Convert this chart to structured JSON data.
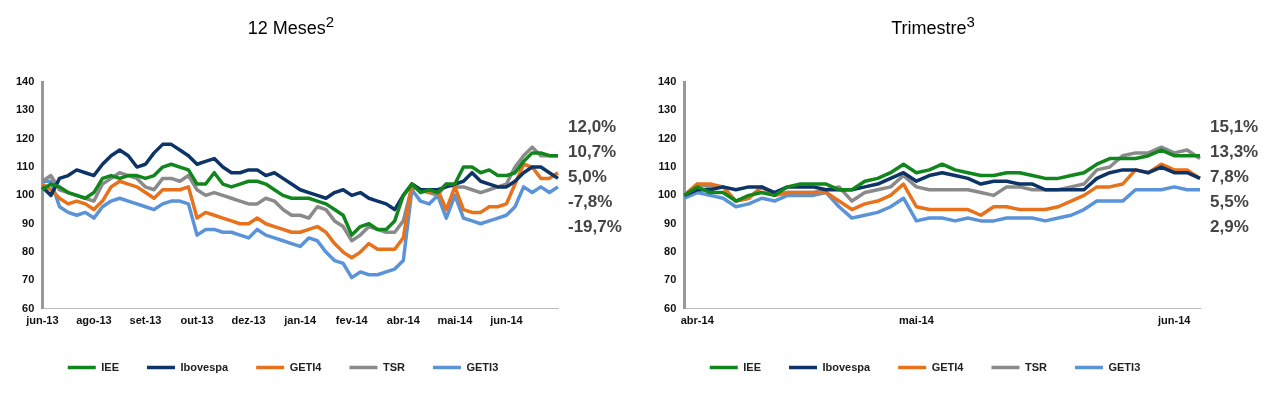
{
  "chart_data": [
    {
      "type": "line",
      "title": "12 Meses$^{2}$",
      "categories": [
        "jun-13",
        null,
        null,
        null,
        null,
        null,
        "ago-13",
        null,
        null,
        null,
        null,
        null,
        "set-13",
        null,
        null,
        null,
        null,
        null,
        "out-13",
        null,
        null,
        null,
        null,
        null,
        "dez-13",
        null,
        null,
        null,
        null,
        null,
        "jan-14",
        null,
        null,
        null,
        null,
        null,
        "fev-14",
        null,
        null,
        null,
        null,
        null,
        "abr-14",
        null,
        null,
        null,
        null,
        null,
        "mai-14",
        null,
        null,
        null,
        null,
        null,
        "jun-14",
        null,
        null,
        null,
        null,
        null,
        null
      ],
      "ylim": [
        60,
        140
      ],
      "yticks": [
        60,
        70,
        80,
        90,
        100,
        110,
        120,
        130,
        140
      ],
      "legend": "bottom",
      "marker": "none",
      "annotations": [
        "12,0%",
        "10,7%",
        "5,0%",
        "-7,8%",
        "-19,7%"
      ],
      "series": [
        {
          "name": "IEE",
          "color": "#11861c",
          "values": [
            102,
            104,
            103,
            101,
            100,
            99,
            101,
            106,
            107,
            106,
            107,
            107,
            106,
            107,
            110,
            111,
            110,
            109,
            104,
            104,
            108,
            104,
            103,
            104,
            105,
            105,
            104,
            102,
            100,
            99,
            99,
            99,
            98,
            97,
            95,
            93,
            86,
            89,
            90,
            88,
            88,
            91,
            100,
            104,
            101,
            102,
            101,
            104,
            104,
            110,
            110,
            108,
            109,
            107,
            107,
            108,
            112,
            115,
            115,
            114,
            114
          ]
        },
        {
          "name": "Ibovespa",
          "color": "#0d3466",
          "values": [
            103,
            100,
            106,
            107,
            109,
            108,
            107,
            111,
            114,
            116,
            114,
            110,
            111,
            115,
            118,
            118,
            116,
            114,
            111,
            112,
            113,
            110,
            108,
            108,
            109,
            109,
            107,
            108,
            106,
            104,
            102,
            101,
            100,
            99,
            101,
            102,
            100,
            101,
            99,
            98,
            97,
            95,
            100,
            104,
            102,
            102,
            102,
            103,
            104,
            105,
            108,
            105,
            104,
            103,
            103,
            105,
            108,
            110,
            110,
            108,
            106
          ]
        },
        {
          "name": "GETI4",
          "color": "#e8711c",
          "values": [
            104,
            102,
            99,
            97,
            98,
            97,
            95,
            98,
            103,
            105,
            104,
            103,
            101,
            99,
            102,
            102,
            102,
            103,
            92,
            94,
            93,
            92,
            91,
            90,
            90,
            92,
            90,
            89,
            88,
            87,
            87,
            88,
            89,
            87,
            83,
            80,
            78,
            80,
            83,
            81,
            81,
            81,
            85,
            104,
            102,
            101,
            102,
            95,
            103,
            95,
            94,
            94,
            96,
            96,
            97,
            104,
            111,
            110,
            106,
            106,
            108
          ]
        },
        {
          "name": "TSR",
          "color": "#8a8a8a",
          "values": [
            105,
            107,
            102,
            101,
            100,
            99,
            98,
            104,
            106,
            108,
            107,
            106,
            103,
            102,
            106,
            106,
            105,
            107,
            102,
            100,
            101,
            100,
            99,
            98,
            97,
            97,
            99,
            98,
            95,
            93,
            93,
            92,
            96,
            95,
            91,
            89,
            84,
            86,
            89,
            88,
            87,
            87,
            91,
            103,
            102,
            101,
            100,
            104,
            103,
            103,
            102,
            101,
            102,
            103,
            104,
            110,
            114,
            117,
            114,
            114,
            114
          ]
        },
        {
          "name": "GETI3",
          "color": "#5b93d9",
          "values": [
            105,
            105,
            96,
            94,
            93,
            94,
            92,
            96,
            98,
            99,
            98,
            97,
            96,
            95,
            97,
            98,
            98,
            97,
            86,
            88,
            88,
            87,
            87,
            86,
            85,
            88,
            86,
            85,
            84,
            83,
            82,
            85,
            84,
            80,
            77,
            76,
            71,
            73,
            72,
            72,
            73,
            74,
            77,
            102,
            98,
            97,
            100,
            92,
            100,
            92,
            91,
            90,
            91,
            92,
            93,
            96,
            103,
            101,
            103,
            101,
            103
          ]
        }
      ]
    },
    {
      "type": "line",
      "title": "Trimestre$^{3}$",
      "categories": [
        null,
        "abr-14",
        null,
        null,
        null,
        null,
        null,
        null,
        null,
        null,
        null,
        null,
        null,
        null,
        null,
        null,
        null,
        null,
        "mai-14",
        null,
        null,
        null,
        null,
        null,
        null,
        null,
        null,
        null,
        null,
        null,
        null,
        null,
        null,
        null,
        null,
        null,
        null,
        null,
        "jun-14",
        null,
        null
      ],
      "ylim": [
        60,
        140
      ],
      "yticks": [
        60,
        70,
        80,
        90,
        100,
        110,
        120,
        130,
        140
      ],
      "legend": "bottom",
      "marker": "none",
      "annotations": [
        "15,1%",
        "13,3%",
        "7,8%",
        "5,5%",
        "2,9%"
      ],
      "series": [
        {
          "name": "IEE",
          "color": "#11861c",
          "values": [
            100,
            103,
            101,
            101,
            98,
            100,
            101,
            100,
            103,
            104,
            104,
            104,
            102,
            102,
            105,
            106,
            108,
            111,
            108,
            109,
            111,
            109,
            108,
            107,
            107,
            108,
            108,
            107,
            106,
            106,
            107,
            108,
            111,
            113,
            113,
            113,
            114,
            116,
            114,
            114,
            114
          ]
        },
        {
          "name": "Ibovespa",
          "color": "#0d3466",
          "values": [
            100,
            102,
            102,
            103,
            102,
            103,
            103,
            101,
            103,
            103,
            103,
            102,
            102,
            102,
            103,
            104,
            106,
            108,
            105,
            107,
            108,
            107,
            106,
            104,
            105,
            105,
            104,
            104,
            102,
            102,
            102,
            102,
            106,
            108,
            109,
            109,
            108,
            110,
            108,
            108,
            106
          ]
        },
        {
          "name": "GETI4",
          "color": "#e8711c",
          "values": [
            100,
            104,
            104,
            103,
            98,
            99,
            103,
            100,
            101,
            101,
            101,
            101,
            98,
            95,
            97,
            98,
            100,
            104,
            96,
            95,
            95,
            95,
            95,
            93,
            96,
            96,
            95,
            95,
            95,
            96,
            98,
            100,
            103,
            103,
            104,
            109,
            108,
            111,
            109,
            109,
            106
          ]
        },
        {
          "name": "TSR",
          "color": "#8a8a8a",
          "values": [
            100,
            104,
            103,
            103,
            98,
            99,
            103,
            100,
            101,
            101,
            101,
            102,
            103,
            98,
            101,
            102,
            103,
            107,
            103,
            102,
            102,
            102,
            102,
            101,
            100,
            103,
            103,
            102,
            102,
            102,
            103,
            104,
            109,
            110,
            114,
            115,
            115,
            117,
            115,
            116,
            113
          ]
        },
        {
          "name": "GETI3",
          "color": "#5b93d9",
          "values": [
            99,
            101,
            100,
            99,
            96,
            97,
            99,
            98,
            100,
            100,
            100,
            101,
            96,
            92,
            93,
            94,
            96,
            99,
            91,
            92,
            92,
            91,
            92,
            91,
            91,
            92,
            92,
            92,
            91,
            92,
            93,
            95,
            98,
            98,
            98,
            102,
            102,
            102,
            103,
            102,
            102
          ]
        }
      ]
    }
  ]
}
